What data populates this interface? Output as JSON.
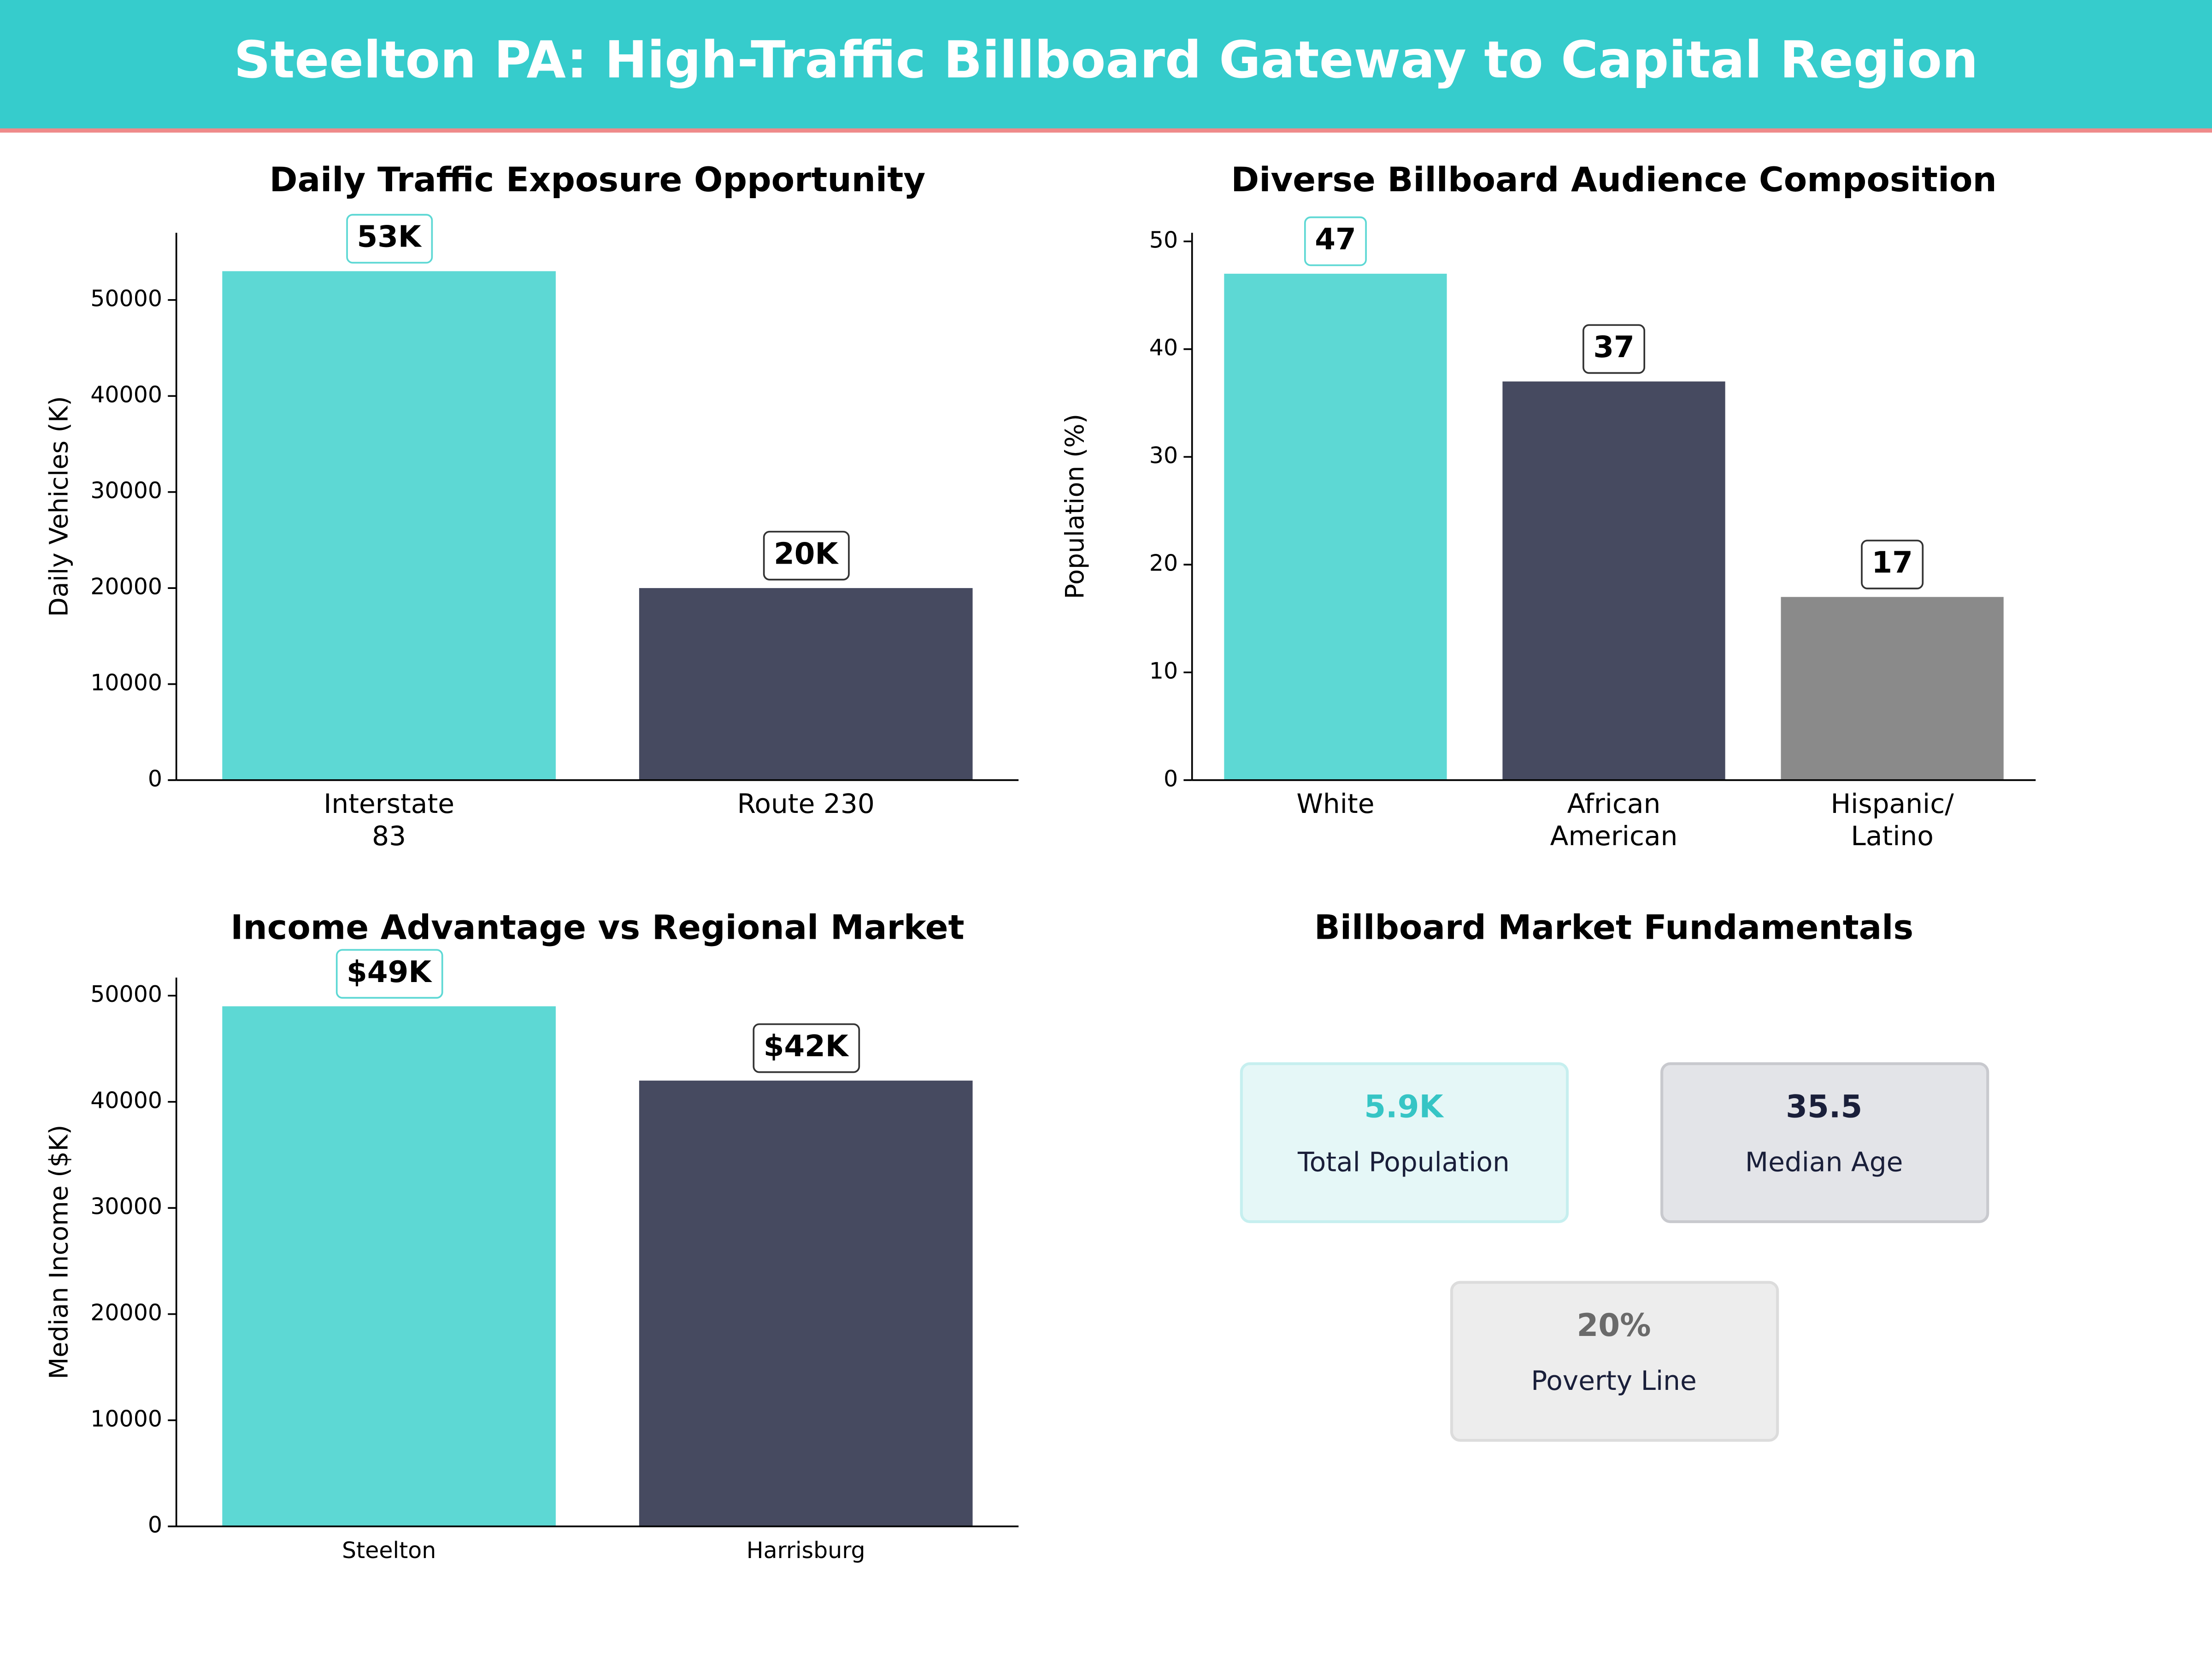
{
  "header": {
    "title": "Steelton PA: High-Traffic Billboard Gateway to Capital Region"
  },
  "chart_data": [
    {
      "type": "bar",
      "title": "Daily Traffic Exposure Opportunity",
      "ylabel": "Daily Vehicles (K)",
      "categories": [
        "Interstate\n83",
        "Route 230"
      ],
      "values": [
        53000,
        20000
      ],
      "value_labels": [
        "53K",
        "20K"
      ],
      "colors": [
        "#5dd8d4",
        "#464a60"
      ],
      "ylim": [
        0,
        57000
      ],
      "yticks": [
        0,
        10000,
        20000,
        30000,
        40000,
        50000
      ]
    },
    {
      "type": "bar",
      "title": "Diverse Billboard Audience Composition",
      "ylabel": "Population (%)",
      "categories": [
        "White",
        "African\nAmerican",
        "Hispanic/\nLatino"
      ],
      "values": [
        47,
        37,
        17
      ],
      "colors": [
        "#5dd8d4",
        "#464a60",
        "#8a8a8a"
      ],
      "ylim": [
        0,
        50.8
      ],
      "yticks": [
        0,
        10,
        20,
        30,
        40,
        50
      ]
    },
    {
      "type": "bar",
      "title": "Income Advantage vs Regional Market",
      "ylabel": "Median Income ($K)",
      "categories": [
        "Steelton",
        "Harrisburg"
      ],
      "values": [
        49000,
        42000
      ],
      "value_labels": [
        "$49K",
        "$42K"
      ],
      "colors": [
        "#5dd8d4",
        "#464a60"
      ],
      "ylim": [
        0,
        51700
      ],
      "yticks": [
        0,
        10000,
        20000,
        30000,
        40000,
        50000
      ]
    }
  ],
  "stats": {
    "title": "Billboard Market Fundamentals",
    "cards": [
      {
        "value": "5.9K",
        "label": "Total Population"
      },
      {
        "value": "35.5",
        "label": "Median Age"
      },
      {
        "value": "20%",
        "label": "Poverty Line"
      }
    ]
  }
}
